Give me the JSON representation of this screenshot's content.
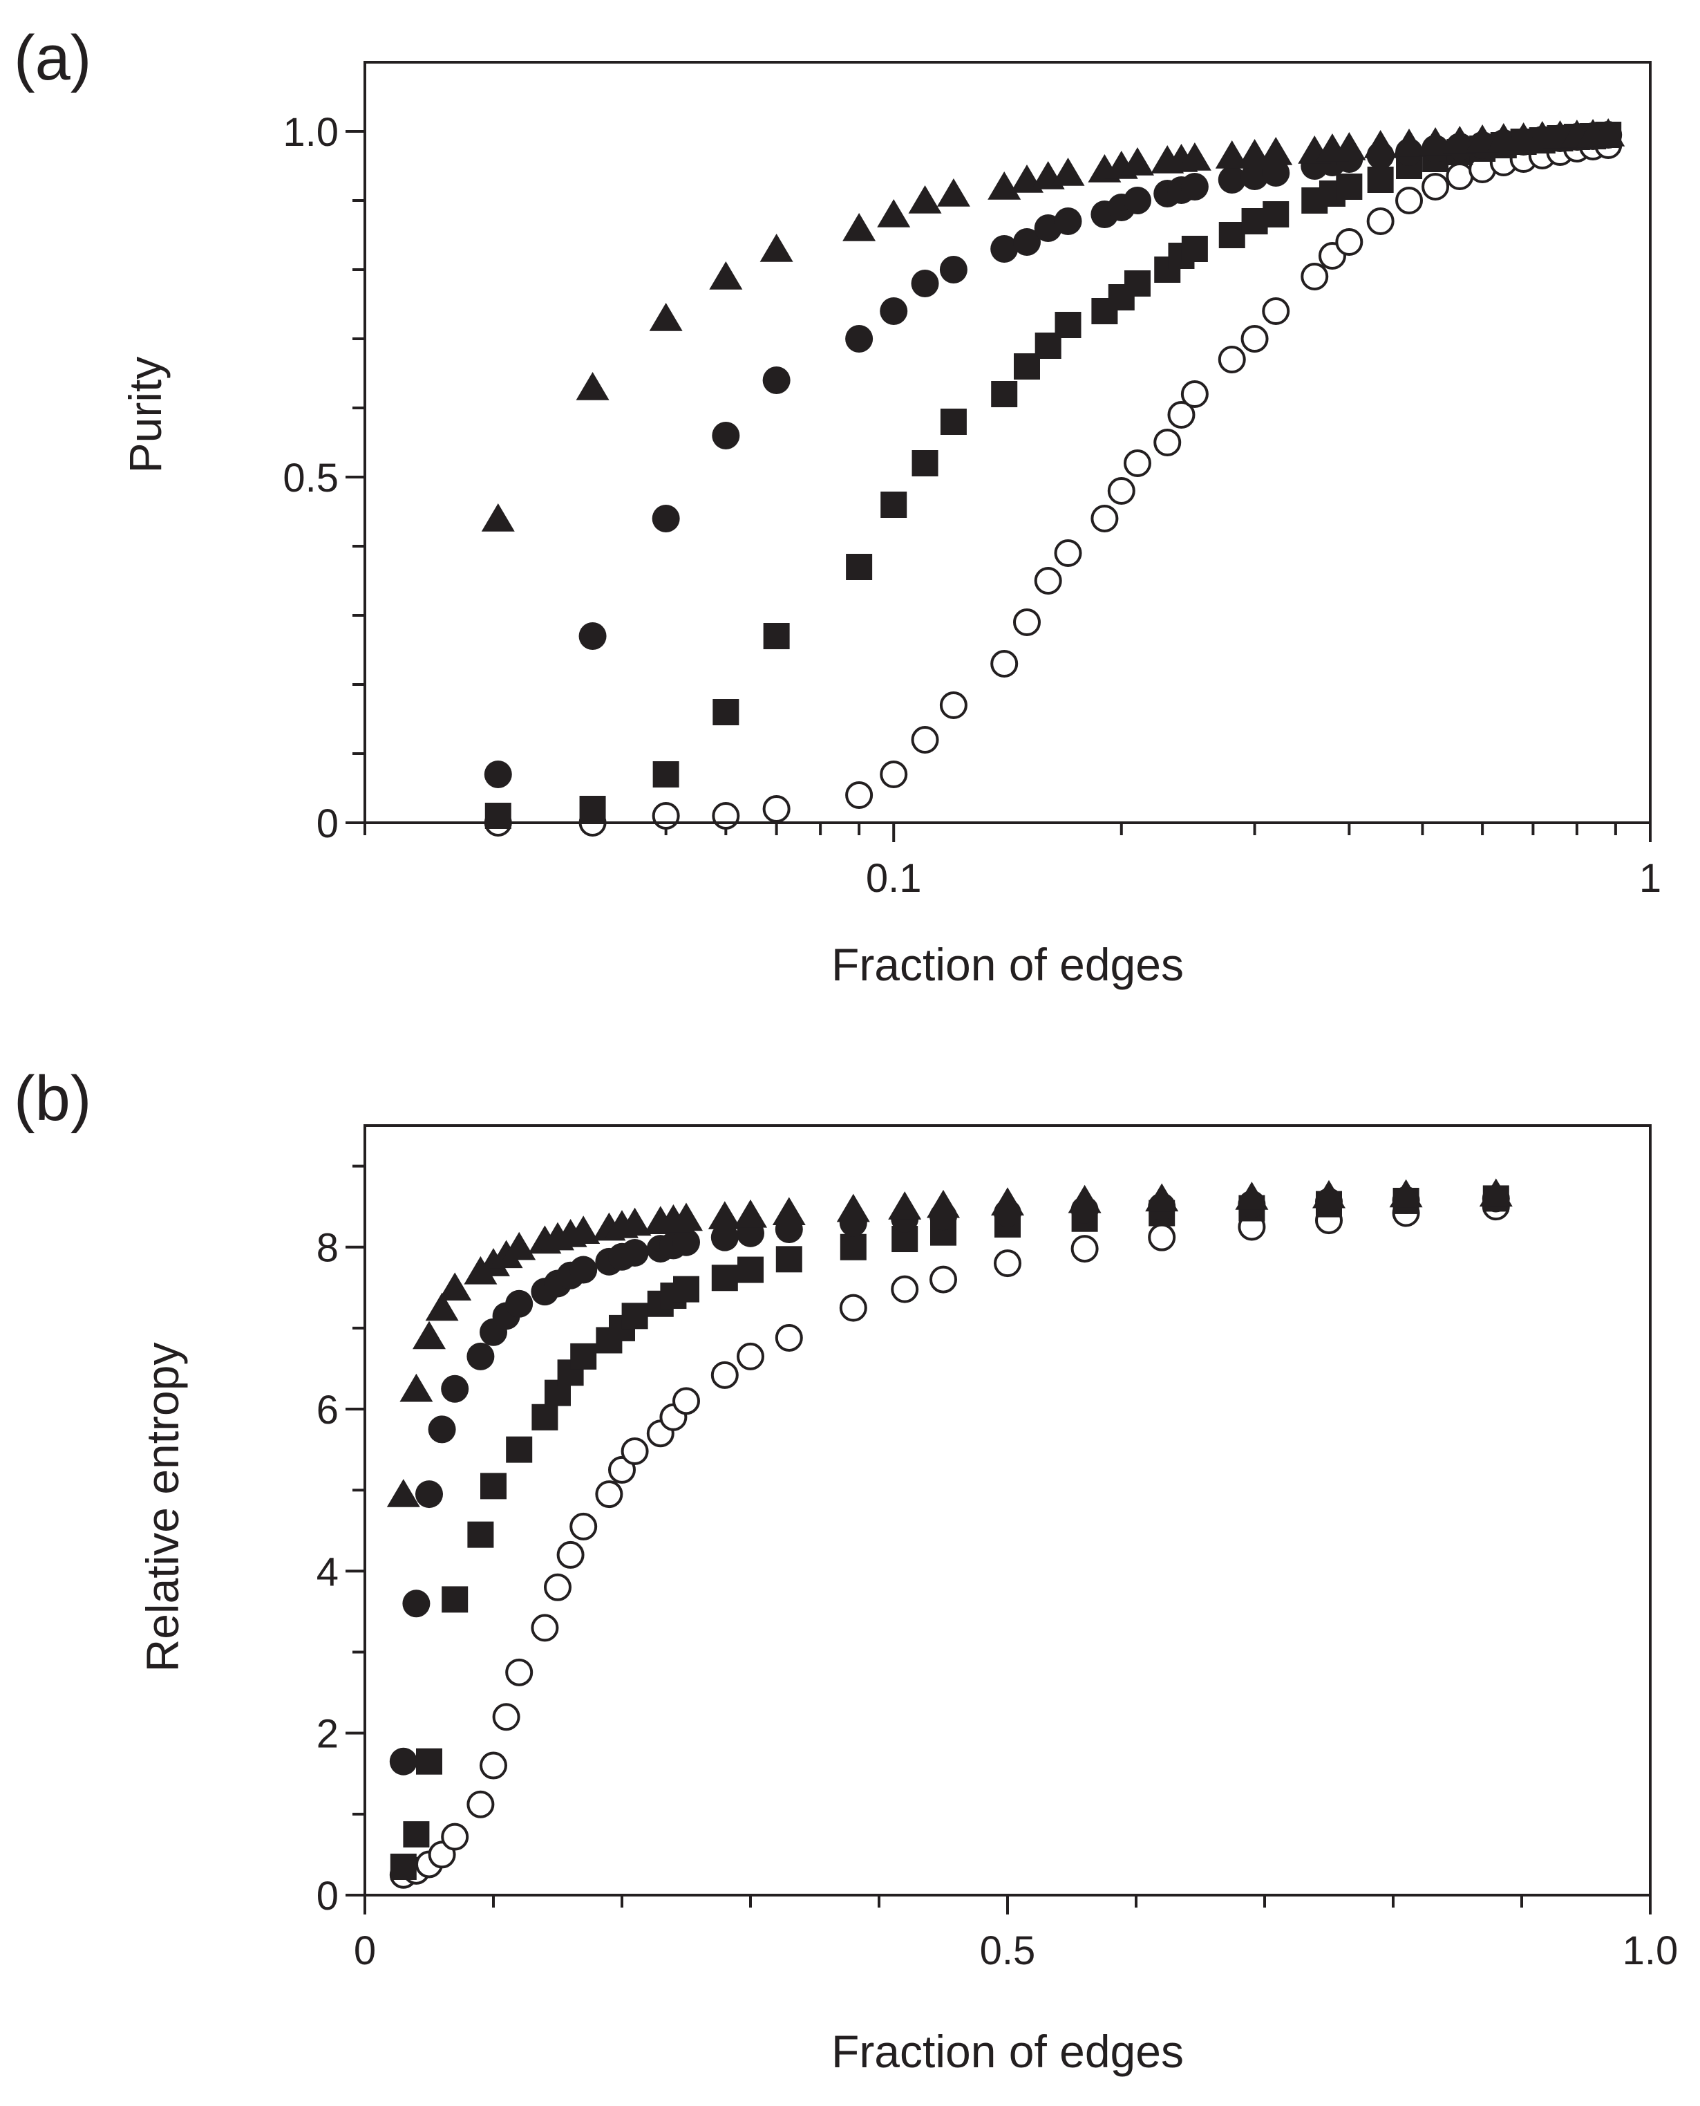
{
  "figure": {
    "marker_color": "#231f20"
  },
  "chart_data": [
    {
      "panel": "(a)",
      "type": "scatter",
      "xscale": "log",
      "xlabel": "Fraction of edges",
      "ylabel": "Purity",
      "xlim": [
        0.02,
        1
      ],
      "ylim": [
        0,
        1.1
      ],
      "xticks": [
        {
          "value": 0.1,
          "label": "0.1"
        },
        {
          "value": 1,
          "label": "1"
        }
      ],
      "xminor": [
        0.02,
        0.03,
        0.04,
        0.05,
        0.06,
        0.07,
        0.08,
        0.09,
        0.2,
        0.3,
        0.4,
        0.5,
        0.6,
        0.7,
        0.8,
        0.9
      ],
      "yticks": [
        {
          "value": 0,
          "label": "0"
        },
        {
          "value": 0.5,
          "label": "0.5"
        },
        {
          "value": 1.0,
          "label": "1.0"
        }
      ],
      "yminor": [
        0.1,
        0.2,
        0.3,
        0.4,
        0.6,
        0.7,
        0.8,
        0.9
      ],
      "series": [
        {
          "name": "triangle",
          "marker": "triangle-filled",
          "x": [
            0.03,
            0.04,
            0.05,
            0.06,
            0.07,
            0.09,
            0.1,
            0.11,
            0.12,
            0.14,
            0.15,
            0.16,
            0.17,
            0.19,
            0.2,
            0.21,
            0.23,
            0.24,
            0.25,
            0.28,
            0.3,
            0.32,
            0.36,
            0.38,
            0.4,
            0.44,
            0.48,
            0.52,
            0.56,
            0.6,
            0.64,
            0.68,
            0.72,
            0.76,
            0.8,
            0.84,
            0.88
          ],
          "y": [
            0.44,
            0.63,
            0.73,
            0.79,
            0.83,
            0.86,
            0.88,
            0.9,
            0.91,
            0.92,
            0.93,
            0.935,
            0.94,
            0.945,
            0.95,
            0.955,
            0.958,
            0.96,
            0.962,
            0.965,
            0.967,
            0.97,
            0.972,
            0.975,
            0.977,
            0.98,
            0.982,
            0.984,
            0.986,
            0.988,
            0.99,
            0.991,
            0.993,
            0.994,
            0.995,
            0.996,
            0.997
          ]
        },
        {
          "name": "filled-circle",
          "marker": "circle-filled",
          "x": [
            0.03,
            0.04,
            0.05,
            0.06,
            0.07,
            0.09,
            0.1,
            0.11,
            0.12,
            0.14,
            0.15,
            0.16,
            0.17,
            0.19,
            0.2,
            0.21,
            0.23,
            0.24,
            0.25,
            0.28,
            0.3,
            0.32,
            0.36,
            0.38,
            0.4,
            0.44,
            0.48,
            0.52,
            0.56,
            0.6,
            0.64,
            0.68,
            0.72,
            0.76,
            0.8,
            0.84,
            0.88
          ],
          "y": [
            0.07,
            0.27,
            0.44,
            0.56,
            0.64,
            0.7,
            0.74,
            0.78,
            0.8,
            0.83,
            0.84,
            0.86,
            0.87,
            0.88,
            0.89,
            0.9,
            0.91,
            0.915,
            0.92,
            0.93,
            0.935,
            0.94,
            0.95,
            0.955,
            0.96,
            0.965,
            0.97,
            0.975,
            0.978,
            0.98,
            0.983,
            0.985,
            0.988,
            0.99,
            0.992,
            0.993,
            0.995
          ]
        },
        {
          "name": "filled-square",
          "marker": "square-filled",
          "x": [
            0.03,
            0.04,
            0.05,
            0.06,
            0.07,
            0.09,
            0.1,
            0.11,
            0.12,
            0.14,
            0.15,
            0.16,
            0.17,
            0.19,
            0.2,
            0.21,
            0.23,
            0.24,
            0.25,
            0.28,
            0.3,
            0.32,
            0.36,
            0.38,
            0.4,
            0.44,
            0.48,
            0.52,
            0.56,
            0.6,
            0.64,
            0.68,
            0.72,
            0.76,
            0.8,
            0.84,
            0.88
          ],
          "y": [
            0.01,
            0.02,
            0.07,
            0.16,
            0.27,
            0.37,
            0.46,
            0.52,
            0.58,
            0.62,
            0.66,
            0.69,
            0.72,
            0.74,
            0.76,
            0.78,
            0.8,
            0.82,
            0.83,
            0.85,
            0.87,
            0.88,
            0.9,
            0.91,
            0.92,
            0.93,
            0.95,
            0.96,
            0.97,
            0.975,
            0.98,
            0.985,
            0.987,
            0.99,
            0.992,
            0.993,
            0.995
          ]
        },
        {
          "name": "open-circle",
          "marker": "circle-open",
          "x": [
            0.03,
            0.04,
            0.05,
            0.06,
            0.07,
            0.09,
            0.1,
            0.11,
            0.12,
            0.14,
            0.15,
            0.16,
            0.17,
            0.19,
            0.2,
            0.21,
            0.23,
            0.24,
            0.25,
            0.28,
            0.3,
            0.32,
            0.36,
            0.38,
            0.4,
            0.44,
            0.48,
            0.52,
            0.56,
            0.6,
            0.64,
            0.68,
            0.72,
            0.76,
            0.8,
            0.84,
            0.88
          ],
          "y": [
            0.0,
            0.0,
            0.01,
            0.01,
            0.02,
            0.04,
            0.07,
            0.12,
            0.17,
            0.23,
            0.29,
            0.35,
            0.39,
            0.44,
            0.48,
            0.52,
            0.55,
            0.59,
            0.62,
            0.67,
            0.7,
            0.74,
            0.79,
            0.82,
            0.84,
            0.87,
            0.9,
            0.92,
            0.935,
            0.945,
            0.955,
            0.96,
            0.965,
            0.97,
            0.975,
            0.978,
            0.98
          ]
        }
      ]
    },
    {
      "panel": "(b)",
      "type": "scatter",
      "xscale": "linear",
      "xlabel": "Fraction of edges",
      "ylabel": "Relative entropy",
      "xlim": [
        0,
        1.0
      ],
      "ylim": [
        0,
        9.5
      ],
      "xticks": [
        {
          "value": 0,
          "label": "0"
        },
        {
          "value": 0.5,
          "label": "0.5"
        },
        {
          "value": 1.0,
          "label": "1.0"
        }
      ],
      "xminor": [
        0.1,
        0.2,
        0.3,
        0.4,
        0.6,
        0.7,
        0.8,
        0.9
      ],
      "yticks": [
        {
          "value": 0,
          "label": "0"
        },
        {
          "value": 2,
          "label": "2"
        },
        {
          "value": 4,
          "label": "4"
        },
        {
          "value": 6,
          "label": "6"
        },
        {
          "value": 8,
          "label": "8"
        }
      ],
      "yminor": [
        1,
        3,
        5,
        7,
        9
      ],
      "series": [
        {
          "name": "triangle",
          "marker": "triangle-filled",
          "x": [
            0.03,
            0.04,
            0.05,
            0.06,
            0.07,
            0.09,
            0.1,
            0.11,
            0.12,
            0.14,
            0.15,
            0.16,
            0.17,
            0.19,
            0.2,
            0.21,
            0.23,
            0.24,
            0.25,
            0.28,
            0.3,
            0.33,
            0.38,
            0.42,
            0.45,
            0.5,
            0.56,
            0.62,
            0.69,
            0.75,
            0.81,
            0.88
          ],
          "y": [
            4.95,
            6.25,
            6.9,
            7.25,
            7.5,
            7.7,
            7.8,
            7.9,
            8.0,
            8.08,
            8.12,
            8.16,
            8.2,
            8.24,
            8.27,
            8.3,
            8.32,
            8.34,
            8.36,
            8.38,
            8.4,
            8.43,
            8.47,
            8.5,
            8.52,
            8.55,
            8.58,
            8.6,
            8.62,
            8.64,
            8.65,
            8.66
          ]
        },
        {
          "name": "filled-circle",
          "marker": "circle-filled",
          "x": [
            0.03,
            0.04,
            0.05,
            0.06,
            0.07,
            0.09,
            0.1,
            0.11,
            0.12,
            0.14,
            0.15,
            0.16,
            0.17,
            0.19,
            0.2,
            0.21,
            0.23,
            0.24,
            0.25,
            0.28,
            0.3,
            0.33,
            0.38,
            0.42,
            0.45,
            0.5,
            0.56,
            0.62,
            0.69,
            0.75,
            0.81,
            0.88
          ],
          "y": [
            1.65,
            3.6,
            4.95,
            5.75,
            6.25,
            6.65,
            6.95,
            7.15,
            7.3,
            7.45,
            7.55,
            7.65,
            7.72,
            7.82,
            7.88,
            7.93,
            7.98,
            8.02,
            8.06,
            8.12,
            8.17,
            8.22,
            8.3,
            8.35,
            8.38,
            8.42,
            8.46,
            8.5,
            8.53,
            8.56,
            8.58,
            8.6
          ]
        },
        {
          "name": "filled-square",
          "marker": "square-filled",
          "x": [
            0.03,
            0.04,
            0.05,
            0.07,
            0.09,
            0.1,
            0.12,
            0.14,
            0.15,
            0.16,
            0.17,
            0.19,
            0.2,
            0.21,
            0.23,
            0.24,
            0.25,
            0.28,
            0.3,
            0.33,
            0.38,
            0.42,
            0.45,
            0.5,
            0.56,
            0.62,
            0.69,
            0.75,
            0.81,
            0.88
          ],
          "y": [
            0.35,
            0.75,
            1.65,
            3.65,
            4.45,
            5.05,
            5.5,
            5.9,
            6.2,
            6.45,
            6.65,
            6.85,
            7.0,
            7.15,
            7.3,
            7.4,
            7.48,
            7.62,
            7.72,
            7.85,
            8.0,
            8.1,
            8.18,
            8.28,
            8.35,
            8.42,
            8.48,
            8.53,
            8.57,
            8.6
          ]
        },
        {
          "name": "open-circle",
          "marker": "circle-open",
          "x": [
            0.03,
            0.04,
            0.05,
            0.06,
            0.07,
            0.09,
            0.1,
            0.11,
            0.12,
            0.14,
            0.15,
            0.16,
            0.17,
            0.19,
            0.2,
            0.21,
            0.23,
            0.24,
            0.25,
            0.28,
            0.3,
            0.33,
            0.38,
            0.42,
            0.45,
            0.5,
            0.56,
            0.62,
            0.69,
            0.75,
            0.81,
            0.88
          ],
          "y": [
            0.25,
            0.3,
            0.38,
            0.5,
            0.72,
            1.12,
            1.6,
            2.2,
            2.75,
            3.3,
            3.8,
            4.2,
            4.55,
            4.95,
            5.25,
            5.48,
            5.7,
            5.9,
            6.1,
            6.42,
            6.65,
            6.88,
            7.25,
            7.48,
            7.6,
            7.8,
            7.98,
            8.12,
            8.25,
            8.33,
            8.42,
            8.5
          ]
        }
      ]
    }
  ]
}
